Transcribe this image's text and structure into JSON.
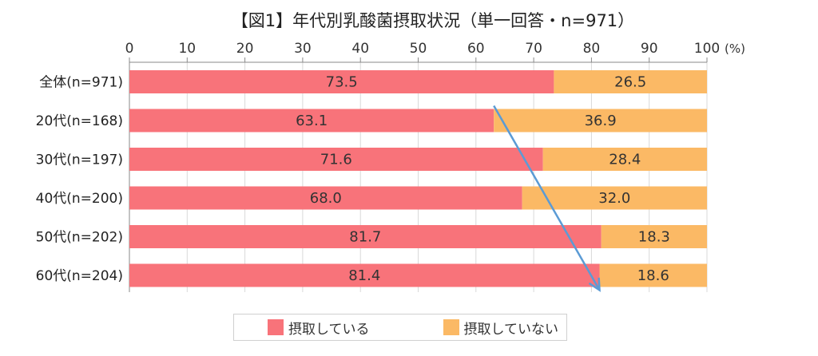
{
  "title": "【図1】年代別乳酸菌摂取状況（単一回答・n=971）",
  "colors": {
    "taking": "#f8737a",
    "not_taking": "#fbb965",
    "arrow": "#5b9bd5",
    "grid": "#d9d9d9",
    "axis": "#888888"
  },
  "chart_data": {
    "type": "bar",
    "orientation": "horizontal",
    "stacked": true,
    "xlim": [
      0,
      100
    ],
    "x_ticks": [
      "0",
      "10",
      "20",
      "30",
      "40",
      "50",
      "60",
      "70",
      "80",
      "90",
      "100"
    ],
    "x_unit": "(%)",
    "categories": [
      "全体(n=971)",
      "20代(n=168)",
      "30代(n=197)",
      "40代(n=200)",
      "50代(n=202)",
      "60代(n=204)"
    ],
    "series": [
      {
        "name": "摂取している",
        "values": [
          73.5,
          63.1,
          71.6,
          68.0,
          81.7,
          81.4
        ],
        "labels": [
          "73.5",
          "63.1",
          "71.6",
          "68.0",
          "81.7",
          "81.4"
        ]
      },
      {
        "name": "摂取していない",
        "values": [
          26.5,
          36.9,
          28.4,
          32.0,
          18.3,
          18.6
        ],
        "labels": [
          "26.5",
          "36.9",
          "28.4",
          "32.0",
          "18.3",
          "18.6"
        ]
      }
    ],
    "grid": true,
    "legend_position": "bottom",
    "annotation": {
      "type": "arrow",
      "from": "20代(n=168)",
      "to": "60代(n=204)",
      "meaning": "trend"
    }
  }
}
